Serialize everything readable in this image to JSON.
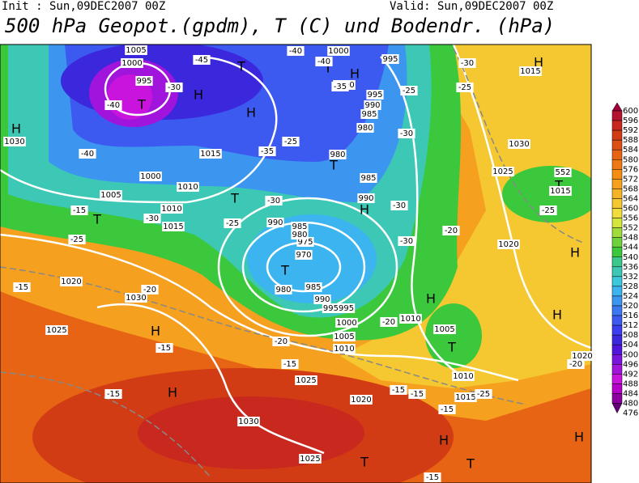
{
  "header": {
    "init": "Init : Sun,09DEC2007 00Z",
    "valid": "Valid: Sun,09DEC2007 00Z",
    "title": "500 hPa Geopot.(gpdm), T (C) und Bodendr. (hPa)"
  },
  "colorbar": {
    "levels": [
      "600",
      "596",
      "592",
      "588",
      "584",
      "580",
      "576",
      "572",
      "568",
      "564",
      "560",
      "556",
      "552",
      "548",
      "544",
      "540",
      "536",
      "532",
      "528",
      "524",
      "520",
      "516",
      "512",
      "508",
      "504",
      "500",
      "496",
      "492",
      "488",
      "484",
      "480",
      "476"
    ],
    "colors": [
      "#a0003c",
      "#b4142d",
      "#c8281e",
      "#d23c14",
      "#dc5014",
      "#e66414",
      "#f07814",
      "#f58c14",
      "#f5a01e",
      "#f5b428",
      "#f5c832",
      "#f0dc3c",
      "#d2e63c",
      "#a0dc3c",
      "#6ed23c",
      "#3cc83c",
      "#3cc88c",
      "#3cc8b4",
      "#3cc8dc",
      "#3cb4f0",
      "#3c96f0",
      "#3c78f0",
      "#3c5af0",
      "#3c3cf0",
      "#3c28dc",
      "#5014dc",
      "#7814dc",
      "#a014dc",
      "#c814dc",
      "#b400c8",
      "#8c00a0",
      "#640078"
    ]
  },
  "map": {
    "labels": [
      "H",
      "T",
      "H",
      "T",
      "H",
      "T",
      "H",
      "T",
      "H",
      "T",
      "H",
      "T",
      "H",
      "H",
      "T",
      "T",
      "H",
      "H",
      "H",
      "H",
      "T",
      "T",
      "H",
      "T",
      "1005",
      "1000",
      "995",
      "1030",
      "1015",
      "1010",
      "1005",
      "1000",
      "1010",
      "1015",
      "1020",
      "1030",
      "1025",
      "1025",
      "1030",
      "1025",
      "1020",
      "1015",
      "1010",
      "1005",
      "1010",
      "1005",
      "1010",
      "1000",
      "995995",
      "990",
      "985",
      "980",
      "970",
      "975",
      "980",
      "985",
      "990",
      "1000",
      "995",
      "1000",
      "995",
      "990",
      "985",
      "980",
      "980",
      "985",
      "990",
      "1020",
      "1025",
      "1030",
      "552",
      "1015",
      "1015",
      "1020",
      "-45",
      "-40",
      "-40",
      "-35",
      "-30",
      "-40",
      "-40",
      "-35",
      "-25",
      "-30",
      "-25",
      "-30",
      "-15",
      "-25",
      "-15",
      "-20",
      "-15",
      "-15",
      "-20",
      "-15",
      "-20",
      "-15",
      "-15",
      "-15",
      "-25",
      "-20",
      "-30",
      "-30",
      "-30",
      "-25",
      "-25",
      "-30",
      "-20",
      "-25",
      "-15"
    ]
  }
}
